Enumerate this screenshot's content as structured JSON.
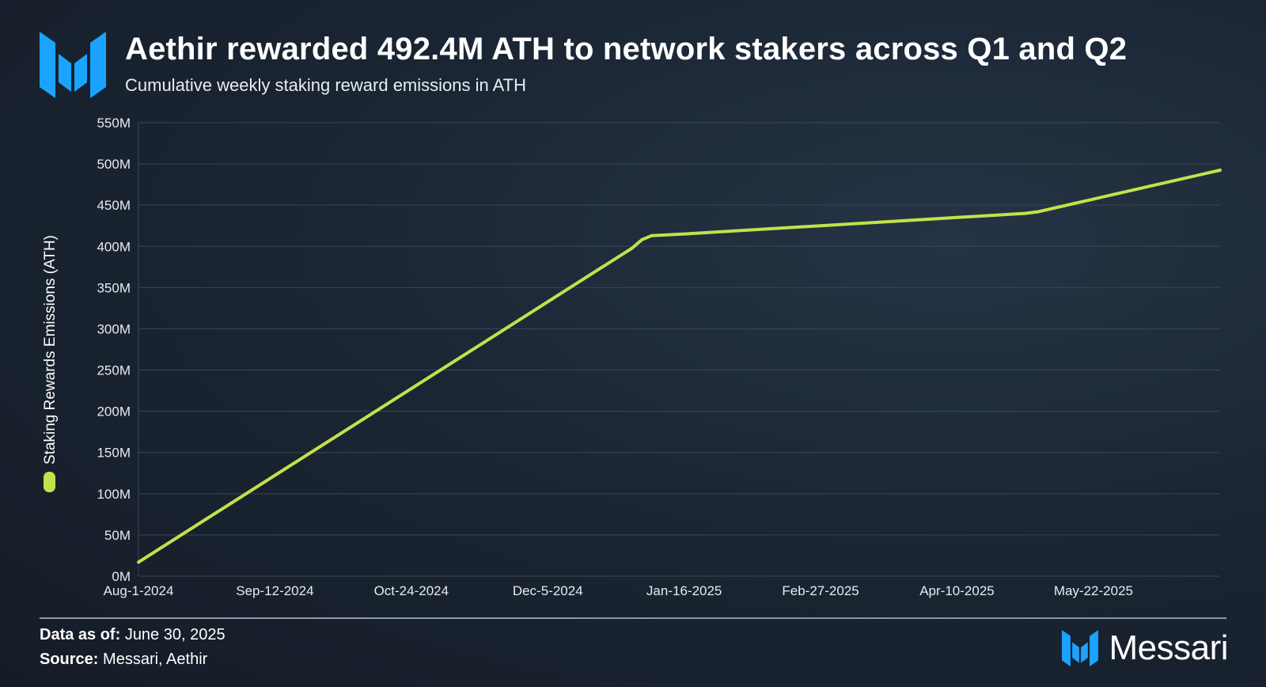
{
  "header": {
    "title": "Aethir rewarded 492.4M ATH to network stakers across Q1 and Q2",
    "subtitle": "Cumulative weekly staking reward emissions in ATH"
  },
  "footer": {
    "data_as_of_label": "Data as of:",
    "data_as_of_value": "June 30, 2025",
    "source_label": "Source:",
    "source_value": "Messari, Aethir",
    "brand": "Messari"
  },
  "colors": {
    "line": "#c2e24a",
    "grid": "#3a4656",
    "brand_blue": "#1aa3ff"
  },
  "chart_data": {
    "type": "line",
    "title": "Aethir rewarded 492.4M ATH to network stakers across Q1 and Q2",
    "subtitle": "Cumulative weekly staking reward emissions in ATH",
    "xlabel": "",
    "ylabel": "Staking Rewards Emissions (ATH)",
    "x_tick_labels": [
      "Aug-1-2024",
      "Sep-12-2024",
      "Oct-24-2024",
      "Dec-5-2024",
      "Jan-16-2025",
      "Feb-27-2025",
      "Apr-10-2025",
      "May-22-2025"
    ],
    "y_tick_labels": [
      "0M",
      "50M",
      "100M",
      "150M",
      "200M",
      "250M",
      "300M",
      "350M",
      "400M",
      "450M",
      "500M",
      "550M"
    ],
    "ylim": [
      0,
      550000000
    ],
    "xlim": [
      "2024-08-01",
      "2025-06-30"
    ],
    "grid": true,
    "legend_placement": "left-vertical",
    "series": [
      {
        "name": "Staking Rewards Emissions (ATH)",
        "x": [
          "2024-08-01",
          "2024-12-31",
          "2025-01-03",
          "2025-01-06",
          "2025-01-16",
          "2025-02-27",
          "2025-04-10",
          "2025-05-01",
          "2025-05-05",
          "2025-06-30"
        ],
        "values": [
          17000000,
          398000000,
          408000000,
          413000000,
          415000000,
          425000000,
          435000000,
          440000000,
          442000000,
          492400000
        ]
      }
    ]
  }
}
